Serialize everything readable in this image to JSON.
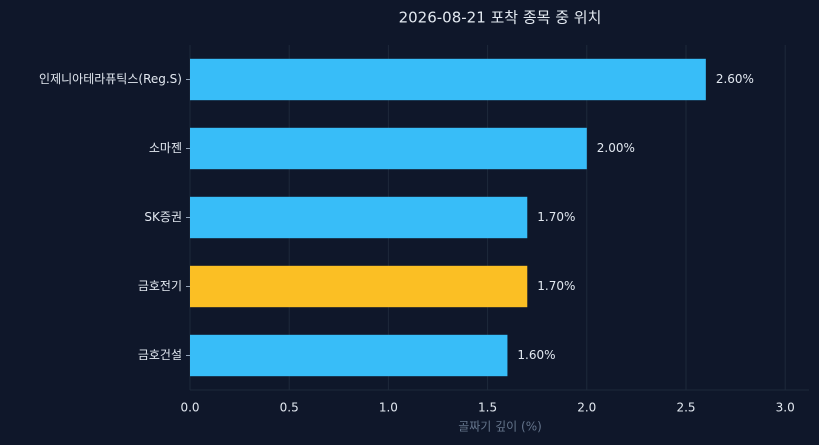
{
  "chart_data": {
    "type": "barh",
    "title": "2026-08-21 포착 종목 중 위치",
    "xlabel": "골짜기 깊이 (%)",
    "categories": [
      "인제니아테라퓨틱스(Reg.S)",
      "소마젠",
      "SK증권",
      "금호전기",
      "금호건설"
    ],
    "values": [
      2.6,
      2.0,
      1.7,
      1.7,
      1.6
    ],
    "value_labels": [
      "2.60%",
      "2.00%",
      "1.70%",
      "1.70%",
      "1.60%"
    ],
    "colors": [
      "#38bdf8",
      "#38bdf8",
      "#38bdf8",
      "#fbbf24",
      "#38bdf8"
    ],
    "xlim": [
      0,
      3.12
    ],
    "xticks": [
      {
        "value": 0,
        "label": "0.0"
      },
      0.5,
      {
        "value": 1,
        "label": "1.0"
      },
      1.5,
      {
        "value": 2,
        "label": "2.0"
      },
      2.5,
      {
        "value": 3,
        "label": "3.0"
      }
    ],
    "grid": true
  }
}
